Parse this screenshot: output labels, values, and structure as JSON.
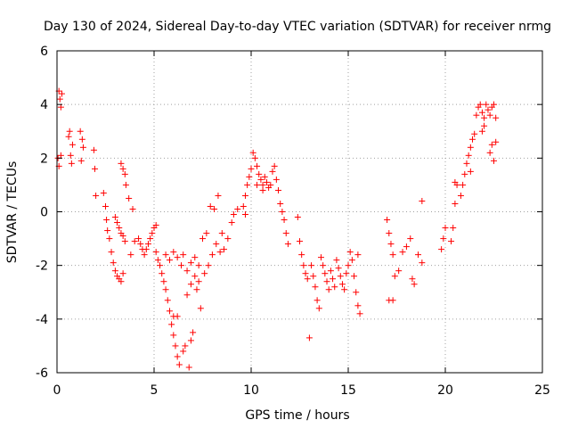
{
  "chart_data": {
    "type": "scatter",
    "title": "Day 130 of 2024, Sidereal Day-to-day VTEC variation (SDTVAR) for receiver nrmg",
    "xlabel": "GPS time / hours",
    "ylabel": "SDTVAR / TECUs",
    "xlim": [
      0,
      25
    ],
    "ylim": [
      -6,
      6
    ],
    "x_ticks": [
      0,
      5,
      10,
      15,
      20,
      25
    ],
    "y_ticks": [
      -6,
      -4,
      -2,
      0,
      2,
      4,
      6
    ],
    "grid": true,
    "marker": "+",
    "color": "#ff0000",
    "series": [
      {
        "name": "SDTVAR",
        "points": [
          [
            0.1,
            4.5
          ],
          [
            0.15,
            4.2
          ],
          [
            0.2,
            3.9
          ],
          [
            0.25,
            4.4
          ],
          [
            0.05,
            2.0
          ],
          [
            0.1,
            1.7
          ],
          [
            0.2,
            2.1
          ],
          [
            0.6,
            2.8
          ],
          [
            0.7,
            2.1
          ],
          [
            0.75,
            1.8
          ],
          [
            0.8,
            2.5
          ],
          [
            0.65,
            3.0
          ],
          [
            1.2,
            3.0
          ],
          [
            1.3,
            2.7
          ],
          [
            1.25,
            1.9
          ],
          [
            1.35,
            2.4
          ],
          [
            1.9,
            2.3
          ],
          [
            1.95,
            1.6
          ],
          [
            2.0,
            0.6
          ],
          [
            2.4,
            0.7
          ],
          [
            2.5,
            0.2
          ],
          [
            2.55,
            -0.3
          ],
          [
            2.6,
            -0.7
          ],
          [
            2.7,
            -1.0
          ],
          [
            2.8,
            -1.5
          ],
          [
            2.9,
            -1.9
          ],
          [
            3.0,
            -2.2
          ],
          [
            3.1,
            -2.4
          ],
          [
            3.2,
            -2.5
          ],
          [
            3.3,
            -2.6
          ],
          [
            3.4,
            -2.3
          ],
          [
            3.0,
            -0.2
          ],
          [
            3.1,
            -0.4
          ],
          [
            3.2,
            -0.6
          ],
          [
            3.3,
            -0.8
          ],
          [
            3.4,
            -0.9
          ],
          [
            3.5,
            -1.1
          ],
          [
            3.3,
            1.8
          ],
          [
            3.4,
            1.6
          ],
          [
            3.5,
            1.4
          ],
          [
            3.55,
            1.0
          ],
          [
            3.7,
            0.5
          ],
          [
            3.8,
            -1.6
          ],
          [
            3.9,
            0.1
          ],
          [
            4.0,
            -1.1
          ],
          [
            4.2,
            -1.0
          ],
          [
            4.3,
            -1.2
          ],
          [
            4.4,
            -1.4
          ],
          [
            4.5,
            -1.6
          ],
          [
            4.6,
            -1.4
          ],
          [
            4.7,
            -1.2
          ],
          [
            4.8,
            -1.0
          ],
          [
            4.9,
            -0.8
          ],
          [
            5.0,
            -0.6
          ],
          [
            5.1,
            -0.5
          ],
          [
            5.1,
            -1.5
          ],
          [
            5.2,
            -1.8
          ],
          [
            5.3,
            -2.0
          ],
          [
            5.4,
            -2.3
          ],
          [
            5.5,
            -2.6
          ],
          [
            5.6,
            -2.9
          ],
          [
            5.7,
            -3.3
          ],
          [
            5.8,
            -3.7
          ],
          [
            5.9,
            -4.2
          ],
          [
            6.0,
            -4.6
          ],
          [
            6.1,
            -5.0
          ],
          [
            6.2,
            -5.4
          ],
          [
            6.3,
            -5.7
          ],
          [
            5.6,
            -1.6
          ],
          [
            5.8,
            -1.8
          ],
          [
            6.0,
            -1.5
          ],
          [
            6.2,
            -1.7
          ],
          [
            6.4,
            -2.0
          ],
          [
            6.5,
            -1.6
          ],
          [
            6.0,
            -3.9
          ],
          [
            6.2,
            -3.9
          ],
          [
            6.5,
            -5.2
          ],
          [
            6.6,
            -5.0
          ],
          [
            6.8,
            -5.8
          ],
          [
            6.9,
            -4.8
          ],
          [
            7.0,
            -4.5
          ],
          [
            6.7,
            -3.1
          ],
          [
            6.9,
            -2.7
          ],
          [
            7.1,
            -2.4
          ],
          [
            7.3,
            -2.0
          ],
          [
            7.4,
            -3.6
          ],
          [
            6.7,
            -2.2
          ],
          [
            6.9,
            -1.9
          ],
          [
            7.1,
            -1.7
          ],
          [
            7.2,
            -2.9
          ],
          [
            7.3,
            -2.6
          ],
          [
            7.6,
            -2.3
          ],
          [
            7.8,
            -2.0
          ],
          [
            8.0,
            -1.6
          ],
          [
            8.2,
            -1.2
          ],
          [
            7.5,
            -1.0
          ],
          [
            7.7,
            -0.8
          ],
          [
            8.4,
            -1.5
          ],
          [
            8.6,
            -1.4
          ],
          [
            7.9,
            0.2
          ],
          [
            8.1,
            0.1
          ],
          [
            8.3,
            0.6
          ],
          [
            8.5,
            -0.8
          ],
          [
            8.8,
            -1.0
          ],
          [
            9.0,
            -0.4
          ],
          [
            9.1,
            -0.1
          ],
          [
            9.3,
            0.1
          ],
          [
            9.6,
            0.2
          ],
          [
            9.7,
            0.6
          ],
          [
            9.8,
            1.0
          ],
          [
            9.9,
            1.3
          ],
          [
            10.0,
            1.6
          ],
          [
            9.7,
            -0.1
          ],
          [
            10.1,
            2.2
          ],
          [
            10.2,
            2.0
          ],
          [
            10.3,
            1.7
          ],
          [
            10.4,
            1.4
          ],
          [
            10.5,
            1.2
          ],
          [
            10.6,
            1.0
          ],
          [
            10.7,
            1.3
          ],
          [
            10.8,
            1.1
          ],
          [
            10.9,
            0.9
          ],
          [
            11.0,
            1.0
          ],
          [
            10.3,
            1.0
          ],
          [
            10.6,
            0.8
          ],
          [
            11.1,
            1.5
          ],
          [
            11.2,
            1.7
          ],
          [
            11.3,
            1.2
          ],
          [
            11.4,
            0.8
          ],
          [
            11.5,
            0.3
          ],
          [
            11.6,
            0.0
          ],
          [
            11.7,
            -0.3
          ],
          [
            11.8,
            -0.8
          ],
          [
            11.9,
            -1.2
          ],
          [
            12.4,
            -0.2
          ],
          [
            12.5,
            -1.1
          ],
          [
            12.6,
            -1.6
          ],
          [
            12.7,
            -2.0
          ],
          [
            12.8,
            -2.3
          ],
          [
            12.9,
            -2.5
          ],
          [
            13.0,
            -4.7
          ],
          [
            13.1,
            -2.0
          ],
          [
            13.2,
            -2.4
          ],
          [
            13.3,
            -2.8
          ],
          [
            13.4,
            -3.3
          ],
          [
            13.5,
            -3.6
          ],
          [
            13.6,
            -1.7
          ],
          [
            13.7,
            -2.0
          ],
          [
            13.8,
            -2.3
          ],
          [
            13.9,
            -2.6
          ],
          [
            14.0,
            -2.9
          ],
          [
            14.1,
            -2.2
          ],
          [
            14.2,
            -2.5
          ],
          [
            14.3,
            -2.8
          ],
          [
            14.4,
            -1.8
          ],
          [
            14.5,
            -2.1
          ],
          [
            14.6,
            -2.4
          ],
          [
            14.7,
            -2.7
          ],
          [
            14.8,
            -2.9
          ],
          [
            14.9,
            -2.3
          ],
          [
            15.0,
            -2.0
          ],
          [
            15.1,
            -1.5
          ],
          [
            15.2,
            -1.8
          ],
          [
            15.3,
            -2.4
          ],
          [
            15.4,
            -3.0
          ],
          [
            15.5,
            -3.5
          ],
          [
            15.6,
            -3.8
          ],
          [
            15.5,
            -1.6
          ],
          [
            17.0,
            -0.3
          ],
          [
            17.1,
            -0.8
          ],
          [
            17.2,
            -1.2
          ],
          [
            17.3,
            -1.6
          ],
          [
            17.1,
            -3.3
          ],
          [
            17.3,
            -3.3
          ],
          [
            17.4,
            -2.4
          ],
          [
            17.6,
            -2.2
          ],
          [
            17.8,
            -1.5
          ],
          [
            18.0,
            -1.3
          ],
          [
            18.2,
            -1.0
          ],
          [
            18.3,
            -2.5
          ],
          [
            18.4,
            -2.7
          ],
          [
            18.6,
            -1.6
          ],
          [
            18.8,
            0.4
          ],
          [
            18.8,
            -1.9
          ],
          [
            19.8,
            -1.4
          ],
          [
            19.9,
            -1.0
          ],
          [
            20.0,
            -0.6
          ],
          [
            20.3,
            -1.1
          ],
          [
            20.4,
            -0.6
          ],
          [
            20.5,
            0.3
          ],
          [
            20.6,
            1.0
          ],
          [
            20.5,
            1.1
          ],
          [
            20.8,
            0.6
          ],
          [
            20.9,
            1.0
          ],
          [
            21.0,
            1.4
          ],
          [
            21.1,
            1.8
          ],
          [
            21.2,
            2.1
          ],
          [
            21.3,
            2.4
          ],
          [
            21.4,
            2.7
          ],
          [
            21.5,
            2.9
          ],
          [
            21.3,
            1.5
          ],
          [
            21.6,
            3.6
          ],
          [
            21.7,
            3.9
          ],
          [
            21.8,
            4.0
          ],
          [
            21.9,
            3.7
          ],
          [
            22.0,
            3.5
          ],
          [
            22.1,
            4.0
          ],
          [
            22.2,
            3.8
          ],
          [
            22.3,
            3.6
          ],
          [
            22.4,
            3.9
          ],
          [
            22.5,
            4.0
          ],
          [
            22.6,
            3.5
          ],
          [
            21.9,
            3.0
          ],
          [
            22.0,
            3.2
          ],
          [
            22.3,
            2.2
          ],
          [
            22.4,
            2.5
          ],
          [
            22.5,
            1.9
          ],
          [
            22.6,
            2.6
          ]
        ]
      }
    ]
  }
}
